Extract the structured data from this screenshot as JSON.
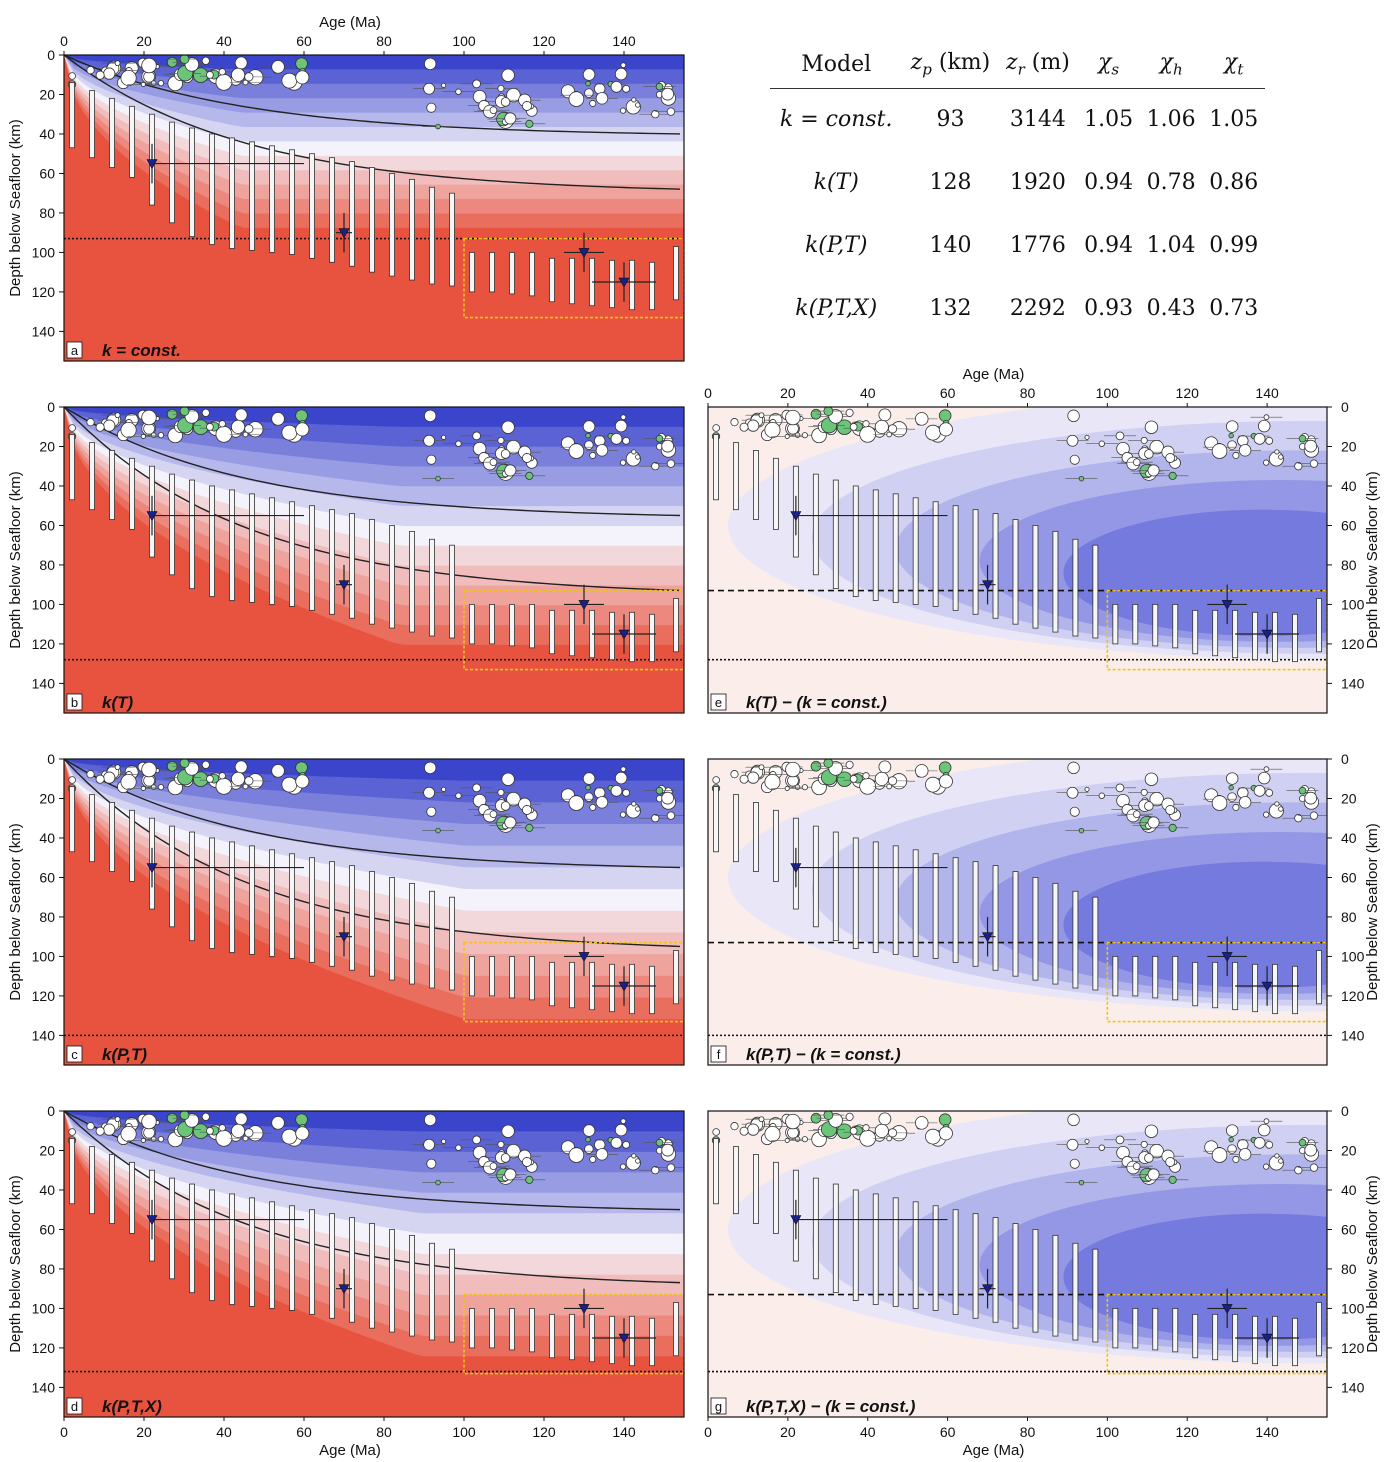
{
  "figure": {
    "x_axis_label": "Age (Ma)",
    "y_axis_label": "Depth below Seafloor (km)",
    "x_ticks": [
      0,
      20,
      40,
      60,
      80,
      100,
      120,
      140
    ],
    "y_ticks": [
      0,
      20,
      40,
      60,
      80,
      100,
      120,
      140
    ],
    "colors": {
      "hot": "#e8533f",
      "cold": "#3b45cc",
      "seismic_white": "#ffffff",
      "seismic_green": "#6cc47a",
      "box": "#f2c218",
      "marker": "#1a1f8a"
    }
  },
  "table": {
    "headers": {
      "model": "Model",
      "zp": {
        "sym": "z",
        "sub": "p",
        "unit": " (km)"
      },
      "zr": {
        "sym": "z",
        "sub": "r",
        "unit": " (m)"
      },
      "xs": {
        "sym": "χ",
        "sub": "s"
      },
      "xh": {
        "sym": "χ",
        "sub": "h"
      },
      "xt": {
        "sym": "χ",
        "sub": "t"
      }
    },
    "rows": [
      {
        "model": "k = const.",
        "zp": "93",
        "zr": "3144",
        "xs": "1.05",
        "xh": "1.06",
        "xt": "1.05"
      },
      {
        "model": "k(T)",
        "zp": "128",
        "zr": "1920",
        "xs": "0.94",
        "xh": "0.78",
        "xt": "0.86"
      },
      {
        "model": "k(P,T)",
        "zp": "140",
        "zr": "1776",
        "xs": "0.94",
        "xh": "1.04",
        "xt": "0.99"
      },
      {
        "model": "k(P,T,X)",
        "zp": "132",
        "zr": "2292",
        "xs": "0.93",
        "xh": "0.43",
        "xt": "0.73"
      }
    ]
  },
  "chart_data": [
    {
      "type": "heatmap",
      "panel": "a",
      "title": "k = const.",
      "xlim": [
        0,
        155
      ],
      "ylim": [
        0,
        155
      ],
      "plate_thickness_km": 93,
      "isotherm_depths_at_155Ma_km": [
        40,
        68
      ]
    },
    {
      "type": "heatmap",
      "panel": "b",
      "title": "k(T)",
      "xlim": [
        0,
        155
      ],
      "ylim": [
        0,
        155
      ],
      "plate_thickness_km": 128,
      "isotherm_depths_at_155Ma_km": [
        55,
        93
      ]
    },
    {
      "type": "heatmap",
      "panel": "c",
      "title": "k(P,T)",
      "xlim": [
        0,
        155
      ],
      "ylim": [
        0,
        155
      ],
      "plate_thickness_km": 140,
      "isotherm_depths_at_155Ma_km": [
        55,
        95
      ]
    },
    {
      "type": "heatmap",
      "panel": "d",
      "title": "k(P,T,X)",
      "xlim": [
        0,
        155
      ],
      "ylim": [
        0,
        155
      ],
      "plate_thickness_km": 132,
      "isotherm_depths_at_155Ma_km": [
        50,
        87
      ]
    },
    {
      "type": "heatmap",
      "panel": "e",
      "title": "k(T) − (k = const.)",
      "xlim": [
        0,
        155
      ],
      "ylim": [
        0,
        155
      ],
      "plate_thickness_km": 128,
      "reference_plate_km": 93
    },
    {
      "type": "heatmap",
      "panel": "f",
      "title": "k(P,T) − (k = const.)",
      "xlim": [
        0,
        155
      ],
      "ylim": [
        0,
        155
      ],
      "plate_thickness_km": 140,
      "reference_plate_km": 93
    },
    {
      "type": "heatmap",
      "panel": "g",
      "title": "k(P,T,X) − (k = const.)",
      "xlim": [
        0,
        155
      ],
      "ylim": [
        0,
        155
      ],
      "plate_thickness_km": 132,
      "reference_plate_km": 93
    },
    {
      "type": "scatter",
      "name": "constraints",
      "lab_markers": [
        {
          "age": 22,
          "depth": 55,
          "age_err": [
            22,
            60
          ],
          "depth_err": [
            45,
            65
          ]
        },
        {
          "age": 70,
          "depth": 90,
          "age_err": [
            68,
            72
          ],
          "depth_err": [
            80,
            100
          ]
        },
        {
          "age": 130,
          "depth": 100,
          "age_err": [
            125,
            135
          ],
          "depth_err": [
            90,
            110
          ]
        },
        {
          "age": 140,
          "depth": 115,
          "age_err": [
            132,
            148
          ],
          "depth_err": [
            105,
            125
          ]
        }
      ],
      "bars_base": [
        [
          2,
          14,
          47
        ],
        [
          7,
          18,
          52
        ],
        [
          12,
          22,
          57
        ],
        [
          17,
          26,
          62
        ],
        [
          22,
          30,
          76
        ],
        [
          27,
          34,
          85
        ],
        [
          32,
          37,
          92
        ],
        [
          37,
          40,
          96
        ],
        [
          42,
          42,
          98
        ],
        [
          47,
          44,
          99
        ],
        [
          52,
          46,
          100
        ],
        [
          57,
          48,
          101
        ],
        [
          62,
          50,
          103
        ],
        [
          67,
          52,
          105
        ],
        [
          72,
          54,
          107
        ],
        [
          77,
          57,
          110
        ],
        [
          82,
          60,
          112
        ],
        [
          87,
          63,
          114
        ],
        [
          92,
          67,
          116
        ],
        [
          97,
          70,
          117
        ],
        [
          102,
          100,
          120
        ],
        [
          107,
          100,
          120
        ],
        [
          112,
          100,
          121
        ],
        [
          117,
          100,
          122
        ],
        [
          122,
          103,
          125
        ],
        [
          127,
          103,
          126
        ],
        [
          132,
          103,
          127
        ],
        [
          137,
          104,
          128
        ],
        [
          142,
          104,
          129
        ],
        [
          147,
          105,
          129
        ],
        [
          153,
          97,
          124
        ]
      ]
    }
  ]
}
